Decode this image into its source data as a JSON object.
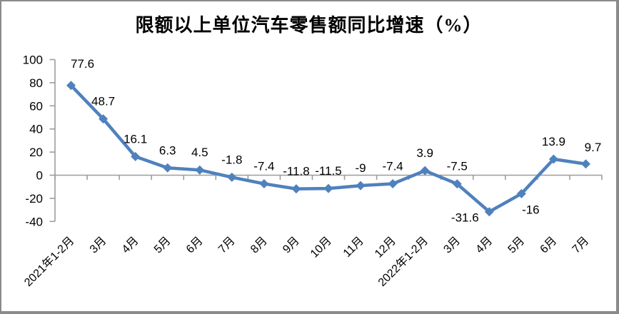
{
  "chart_data": {
    "type": "line",
    "title": "限额以上单位汽车零售额同比增速（%）",
    "xlabel": "",
    "ylabel": "",
    "categories": [
      "2021年1-2月",
      "3月",
      "4月",
      "5月",
      "6月",
      "7月",
      "8月",
      "9月",
      "10月",
      "11月",
      "12月",
      "2022年1-2月",
      "3月",
      "4月",
      "5月",
      "6月",
      "7月"
    ],
    "values": [
      77.6,
      48.7,
      16.1,
      6.3,
      4.5,
      -1.8,
      -7.4,
      -11.8,
      -11.5,
      -9,
      -7.4,
      3.9,
      -7.5,
      -31.6,
      -16,
      13.9,
      9.7
    ],
    "data_labels": [
      "77.6",
      "48.7",
      "16.1",
      "6.3",
      "4.5",
      "-1.8",
      "-7.4",
      "-11.8",
      "-11.5",
      "-9",
      "-7.4",
      "3.9",
      "-7.5",
      "-31.6",
      "-16",
      "13.9",
      "9.7"
    ],
    "yticks": [
      100,
      80,
      60,
      40,
      20,
      0,
      -20,
      -40
    ],
    "ylim": [
      -40,
      100
    ],
    "grid": false,
    "legend": "none",
    "series_color": "#4F81BD",
    "axis_color": "#9c9c9c",
    "text_color": "#000000",
    "label_default_offset": [
      0,
      -19
    ],
    "label_offsets": {
      "0": [
        16,
        -25
      ],
      "13": [
        -34,
        14
      ],
      "14": [
        13,
        28
      ],
      "16": [
        10,
        -18
      ]
    }
  }
}
